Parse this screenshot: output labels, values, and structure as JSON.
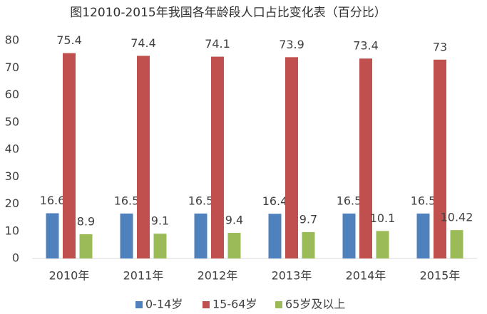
{
  "chart_data": {
    "type": "bar",
    "title": "图12010-2015年我国各年龄段人口占比变化表（百分比）",
    "categories": [
      "2010年",
      "2011年",
      "2012年",
      "2013年",
      "2014年",
      "2015年"
    ],
    "series": [
      {
        "name": "0-14岁",
        "color": "#4f81bd",
        "values": [
          16.6,
          16.5,
          16.5,
          16.4,
          16.5,
          16.5
        ]
      },
      {
        "name": "15-64岁",
        "color": "#c0504d",
        "values": [
          75.4,
          74.4,
          74.1,
          73.9,
          73.4,
          73
        ]
      },
      {
        "name": "65岁及以上",
        "color": "#9bbb59",
        "values": [
          8.9,
          9.1,
          9.4,
          9.7,
          10.1,
          10.42
        ]
      }
    ],
    "ylim": [
      0,
      80
    ],
    "yticks": [
      0,
      10,
      20,
      30,
      40,
      50,
      60,
      70,
      80
    ],
    "grid": false,
    "legend": "bottom"
  }
}
